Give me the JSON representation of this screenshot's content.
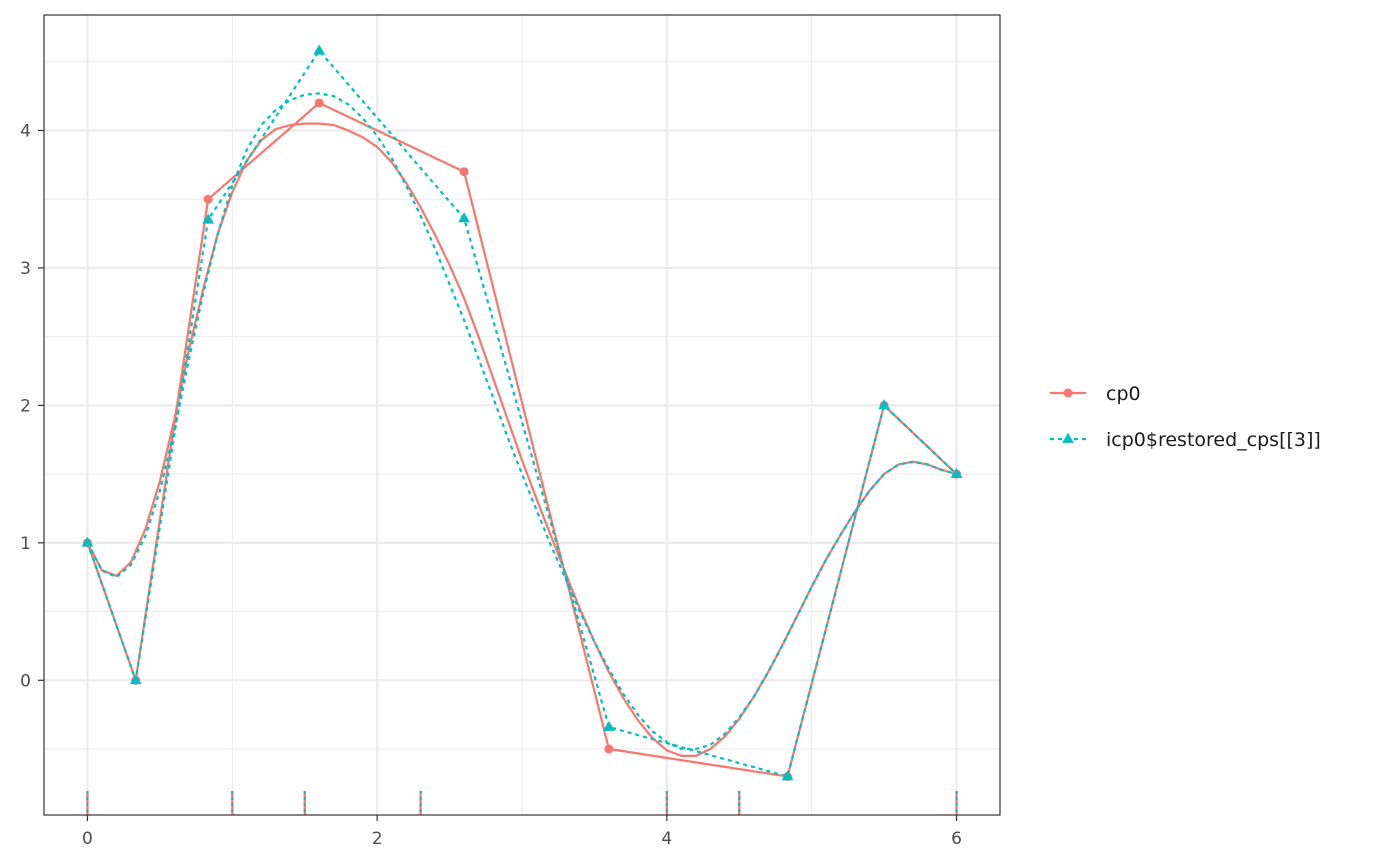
{
  "chart_data": {
    "type": "line",
    "title": "",
    "xlabel": "",
    "ylabel": "",
    "xlim": [
      -0.3,
      6.3
    ],
    "ylim": [
      -0.98,
      4.84
    ],
    "x_major_ticks": [
      0,
      2,
      4,
      6
    ],
    "x_minor_ticks": [
      1,
      3,
      5
    ],
    "y_major_ticks": [
      0,
      1,
      2,
      3,
      4
    ],
    "y_minor_ticks": [
      -0.5,
      0.5,
      1.5,
      2.5,
      3.5,
      4.5
    ],
    "x_tick_labels": [
      "0",
      "2",
      "4",
      "6"
    ],
    "y_tick_labels": [
      "0",
      "1",
      "2",
      "3",
      "4"
    ],
    "grid": true,
    "legend": {
      "position": "right",
      "entries": [
        {
          "label": "cp0",
          "color": "#F8766D",
          "linetype": "solid",
          "marker": "circle"
        },
        {
          "label": "icp0$restored_cps[[3]]",
          "color": "#00BFC4",
          "linetype": "dotted",
          "marker": "triangle"
        }
      ]
    },
    "series": [
      {
        "name": "cp0",
        "color": "#F8766D",
        "linetype": "solid",
        "marker": "circle",
        "control_points": {
          "x": [
            0,
            0.333,
            0.833,
            1.6,
            2.6,
            3.6,
            4.833,
            5.5,
            6
          ],
          "y": [
            1,
            0,
            3.5,
            4.2,
            3.7,
            -0.5,
            -0.7,
            2,
            1.5
          ]
        },
        "curve": {
          "x": [
            0,
            0.1,
            0.2,
            0.3,
            0.4,
            0.5,
            0.6,
            0.7,
            0.8,
            0.9,
            1.0,
            1.1,
            1.2,
            1.3,
            1.4,
            1.5,
            1.6,
            1.7,
            1.8,
            1.9,
            2.0,
            2.1,
            2.2,
            2.3,
            2.4,
            2.5,
            2.6,
            2.7,
            2.8,
            2.9,
            3.0,
            3.1,
            3.2,
            3.3,
            3.4,
            3.5,
            3.6,
            3.7,
            3.8,
            3.9,
            4.0,
            4.1,
            4.2,
            4.3,
            4.4,
            4.5,
            4.6,
            4.7,
            4.8,
            4.9,
            5.0,
            5.1,
            5.2,
            5.3,
            5.4,
            5.5,
            5.6,
            5.7,
            5.8,
            5.9,
            6.0
          ],
          "y": [
            1.0,
            0.8,
            0.76,
            0.86,
            1.1,
            1.45,
            1.9,
            2.4,
            2.85,
            3.25,
            3.55,
            3.78,
            3.93,
            4.01,
            4.04,
            4.05,
            4.05,
            4.04,
            4.0,
            3.95,
            3.88,
            3.77,
            3.62,
            3.44,
            3.24,
            3.02,
            2.78,
            2.5,
            2.2,
            1.9,
            1.6,
            1.32,
            1.05,
            0.78,
            0.52,
            0.28,
            0.06,
            -0.13,
            -0.29,
            -0.42,
            -0.51,
            -0.55,
            -0.55,
            -0.5,
            -0.41,
            -0.28,
            -0.12,
            0.06,
            0.26,
            0.47,
            0.68,
            0.88,
            1.06,
            1.23,
            1.38,
            1.5,
            1.57,
            1.59,
            1.57,
            1.53,
            1.5
          ]
        }
      },
      {
        "name": "icp0$restored_cps[[3]]",
        "color": "#00BFC4",
        "linetype": "dotted",
        "marker": "triangle",
        "control_points": {
          "x": [
            0,
            0.333,
            0.833,
            1.6,
            2.6,
            3.6,
            4.833,
            5.5,
            6
          ],
          "y": [
            1,
            0,
            3.35,
            4.58,
            3.36,
            -0.34,
            -0.7,
            2,
            1.5
          ]
        },
        "curve": {
          "x": [
            0,
            0.1,
            0.2,
            0.3,
            0.4,
            0.5,
            0.6,
            0.7,
            0.8,
            0.9,
            1.0,
            1.1,
            1.2,
            1.3,
            1.4,
            1.5,
            1.6,
            1.7,
            1.8,
            1.9,
            2.0,
            2.1,
            2.2,
            2.3,
            2.4,
            2.5,
            2.6,
            2.7,
            2.8,
            2.9,
            3.0,
            3.1,
            3.2,
            3.3,
            3.4,
            3.5,
            3.6,
            3.7,
            3.8,
            3.9,
            4.0,
            4.1,
            4.2,
            4.3,
            4.4,
            4.5,
            4.6,
            4.7,
            4.8,
            4.9,
            5.0,
            5.1,
            5.2,
            5.3,
            5.4,
            5.5,
            5.6,
            5.7,
            5.8,
            5.9,
            6.0
          ],
          "y": [
            1.0,
            0.8,
            0.75,
            0.84,
            1.05,
            1.38,
            1.82,
            2.33,
            2.82,
            3.25,
            3.6,
            3.86,
            4.04,
            4.15,
            4.22,
            4.26,
            4.27,
            4.25,
            4.19,
            4.09,
            3.96,
            3.8,
            3.6,
            3.38,
            3.14,
            2.88,
            2.62,
            2.34,
            2.06,
            1.77,
            1.5,
            1.24,
            0.98,
            0.74,
            0.5,
            0.28,
            0.08,
            -0.1,
            -0.25,
            -0.37,
            -0.45,
            -0.5,
            -0.5,
            -0.47,
            -0.39,
            -0.27,
            -0.12,
            0.06,
            0.26,
            0.47,
            0.68,
            0.88,
            1.06,
            1.23,
            1.38,
            1.5,
            1.57,
            1.59,
            1.57,
            1.53,
            1.5
          ]
        }
      }
    ],
    "rug": {
      "x": [
        0,
        1,
        1.5,
        2.3,
        4,
        4.5,
        6
      ],
      "colors": [
        "#F8766D",
        "#00BFC4"
      ]
    }
  }
}
